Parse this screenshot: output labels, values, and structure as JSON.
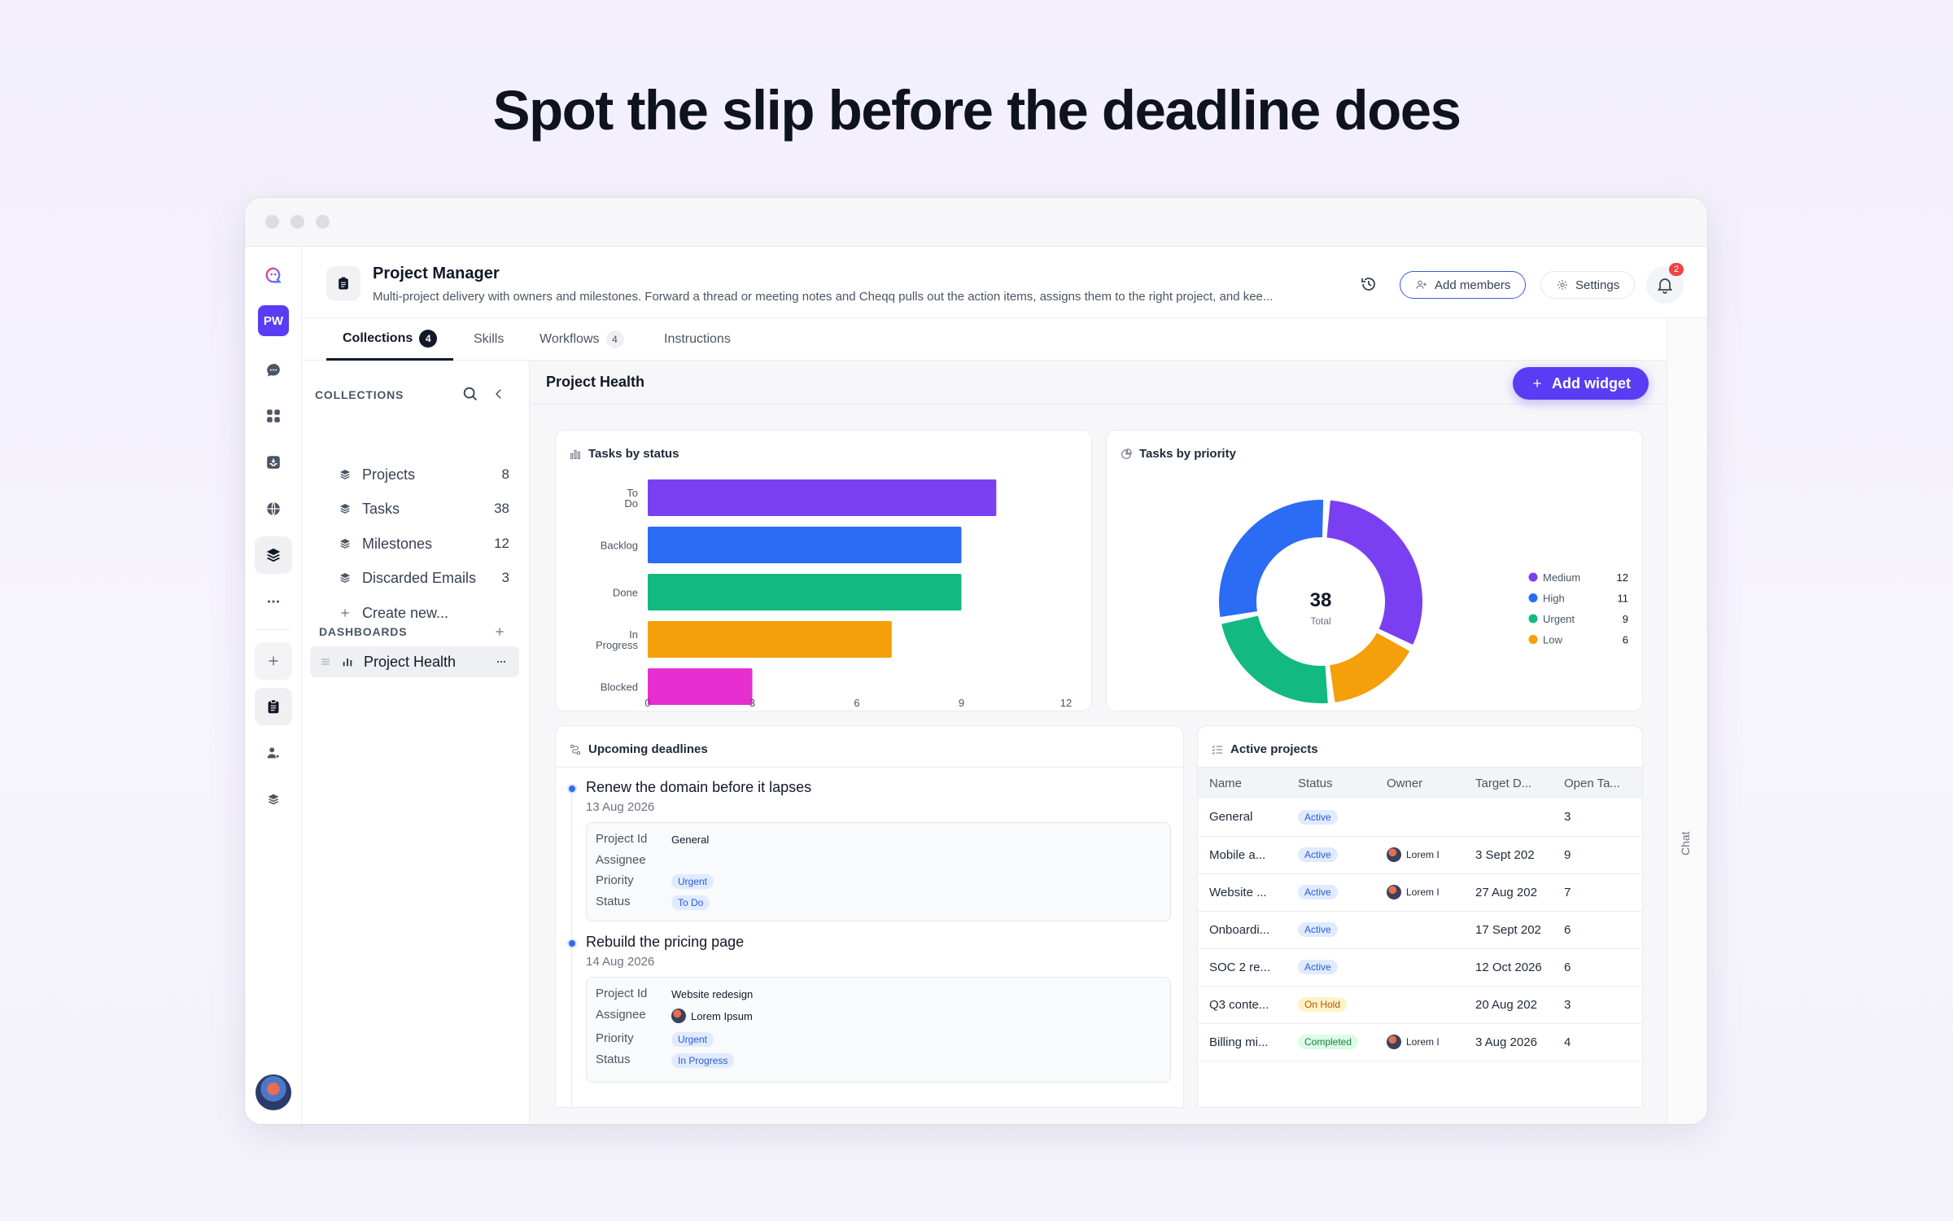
{
  "headline": "Spot the slip before the deadline does",
  "rail": {
    "user_initials": "PW"
  },
  "header": {
    "title": "Project Manager",
    "description": "Multi-project delivery with owners and milestones. Forward a thread or meeting notes and Cheqq pulls out the action items, assigns them to the right project, and kee...",
    "add_members_label": "Add members",
    "settings_label": "Settings",
    "notification_count": "2"
  },
  "tabs": [
    {
      "label": "Collections",
      "count": "4"
    },
    {
      "label": "Skills"
    },
    {
      "label": "Workflows",
      "count": "4"
    },
    {
      "label": "Instructions"
    }
  ],
  "chat_label": "Chat",
  "sidebar": {
    "collections_heading": "COLLECTIONS",
    "collections": [
      {
        "label": "Projects",
        "count": "8"
      },
      {
        "label": "Tasks",
        "count": "38"
      },
      {
        "label": "Milestones",
        "count": "12"
      },
      {
        "label": "Discarded Emails",
        "count": "3"
      }
    ],
    "create_new_label": "Create new...",
    "dashboards_heading": "DASHBOARDS",
    "dashboards": [
      {
        "label": "Project Health"
      }
    ]
  },
  "main": {
    "title": "Project Health",
    "add_widget_label": "Add widget"
  },
  "chart_data": [
    {
      "type": "bar",
      "orientation": "horizontal",
      "title": "Tasks by status",
      "categories": [
        "To Do",
        "Backlog",
        "Done",
        "In Progress",
        "Blocked"
      ],
      "values": [
        10,
        9,
        9,
        7,
        3
      ],
      "colors": [
        "#7b3ff2",
        "#2b6cf5",
        "#12b981",
        "#f59f0b",
        "#e62ed1"
      ],
      "xlim": [
        0,
        12
      ],
      "xticks": [
        "0",
        "3",
        "6",
        "9",
        "12"
      ]
    },
    {
      "type": "pie",
      "variant": "donut",
      "title": "Tasks by priority",
      "center_value": "38",
      "center_label": "Total",
      "categories": [
        "Medium",
        "High",
        "Urgent",
        "Low"
      ],
      "values": [
        12,
        11,
        9,
        6
      ],
      "colors": [
        "#7b3ff2",
        "#2b6cf5",
        "#12b981",
        "#f59f0b"
      ],
      "legend": "right",
      "draw_order": [
        0,
        3,
        2,
        1
      ]
    }
  ],
  "deadlines": {
    "title": "Upcoming deadlines",
    "field_labels": {
      "project": "Project Id",
      "assignee": "Assignee",
      "priority": "Priority",
      "status": "Status"
    },
    "items": [
      {
        "title": "Renew the domain before it lapses",
        "date": "13 Aug 2026",
        "project": "General",
        "assignee": "",
        "priority": "Urgent",
        "status": "To Do"
      },
      {
        "title": "Rebuild the pricing page",
        "date": "14 Aug 2026",
        "project": "Website redesign",
        "assignee": "Lorem Ipsum",
        "priority": "Urgent",
        "status": "In Progress"
      }
    ]
  },
  "projects_table": {
    "title": "Active projects",
    "columns": [
      "Name",
      "Status",
      "Owner",
      "Target D...",
      "Open Ta..."
    ],
    "rows": [
      {
        "name": "General",
        "status": "Active",
        "status_color": "blue",
        "owner": "",
        "target": "",
        "open": "3"
      },
      {
        "name": "Mobile a...",
        "status": "Active",
        "status_color": "blue",
        "owner": "Lorem I",
        "target": "3 Sept 202",
        "open": "9"
      },
      {
        "name": "Website ...",
        "status": "Active",
        "status_color": "blue",
        "owner": "Lorem I",
        "target": "27 Aug 202",
        "open": "7"
      },
      {
        "name": "Onboardi...",
        "status": "Active",
        "status_color": "blue",
        "owner": "",
        "target": "17 Sept 202",
        "open": "6"
      },
      {
        "name": "SOC 2 re...",
        "status": "Active",
        "status_color": "blue",
        "owner": "",
        "target": "12 Oct 2026",
        "open": "6"
      },
      {
        "name": "Q3 conte...",
        "status": "On Hold",
        "status_color": "amber",
        "owner": "",
        "target": "20 Aug 202",
        "open": "3"
      },
      {
        "name": "Billing mi...",
        "status": "Completed",
        "status_color": "green",
        "owner": "Lorem I",
        "target": "3 Aug 2026",
        "open": "4"
      }
    ]
  }
}
